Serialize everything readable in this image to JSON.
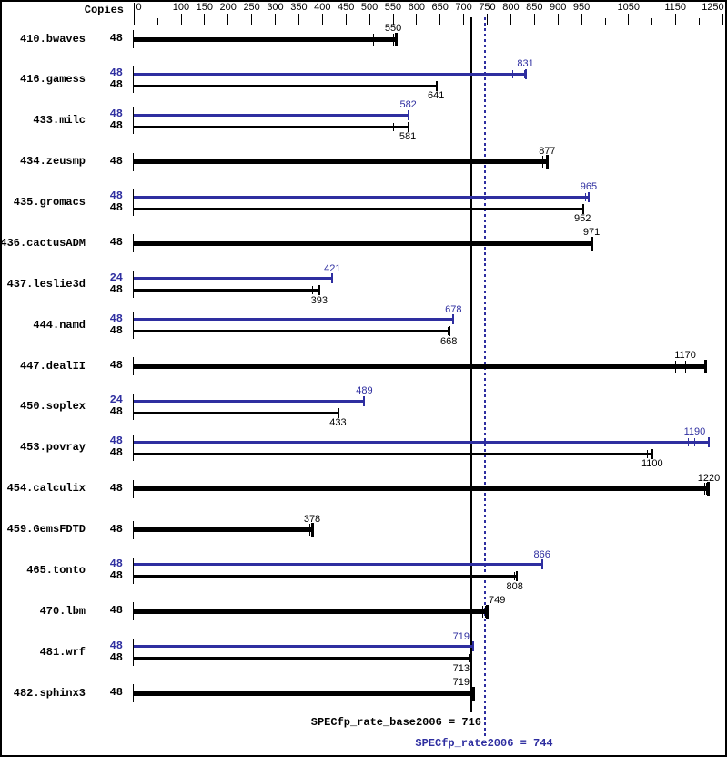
{
  "header": {
    "copies_label": "Copies"
  },
  "summary": {
    "base_label": "SPECfp_rate_base2006 = 716",
    "peak_label": "SPECfp_rate2006 = 744"
  },
  "colors": {
    "base": "#000000",
    "peak": "#2e2ea0",
    "background": "#ffffff"
  },
  "chart_data": {
    "type": "bar",
    "orientation": "horizontal",
    "xlabel": "Copies",
    "xlim": [
      0,
      1250
    ],
    "axis": {
      "major_ticks": [
        0,
        100,
        150,
        200,
        250,
        300,
        350,
        400,
        450,
        500,
        550,
        600,
        650,
        700,
        750,
        800,
        850,
        900,
        950,
        1050,
        1150,
        1250
      ],
      "minor_ticks": [
        50,
        1000,
        1100,
        1200
      ]
    },
    "reference_lines": [
      {
        "name": "SPECfp_rate_base2006",
        "value": 716,
        "style": "solid",
        "color": "#000000"
      },
      {
        "name": "SPECfp_rate2006",
        "value": 744,
        "style": "dotted",
        "color": "#2e2ea0"
      }
    ],
    "benchmarks": [
      {
        "name": "410.bwaves",
        "bars": [
          {
            "type": "base",
            "copies": 48,
            "value": 550,
            "run_marks": [
              508,
              550,
              556
            ]
          }
        ]
      },
      {
        "name": "416.gamess",
        "bars": [
          {
            "type": "peak",
            "copies": 48,
            "value": 831,
            "run_marks": [
              804,
              828,
              831
            ]
          },
          {
            "type": "base",
            "copies": 48,
            "value": 641,
            "run_marks": [
              604,
              641,
              643
            ]
          }
        ]
      },
      {
        "name": "433.milc",
        "bars": [
          {
            "type": "peak",
            "copies": 48,
            "value": 582,
            "run_marks": [
              580,
              582,
              582
            ]
          },
          {
            "type": "base",
            "copies": 48,
            "value": 581,
            "run_marks": [
              551,
              581,
              582
            ]
          }
        ]
      },
      {
        "name": "434.zeusmp",
        "bars": [
          {
            "type": "base",
            "copies": 48,
            "value": 877,
            "run_marks": [
              867,
              877,
              878
            ]
          }
        ]
      },
      {
        "name": "435.gromacs",
        "bars": [
          {
            "type": "peak",
            "copies": 48,
            "value": 965,
            "run_marks": [
              959,
              963,
              965
            ]
          },
          {
            "type": "base",
            "copies": 48,
            "value": 952,
            "run_marks": [
              948,
              952,
              953
            ]
          }
        ]
      },
      {
        "name": "436.cactusADM",
        "bars": [
          {
            "type": "base",
            "copies": 48,
            "value": 971,
            "run_marks": [
              970,
              971,
              971
            ]
          }
        ]
      },
      {
        "name": "437.leslie3d",
        "bars": [
          {
            "type": "peak",
            "copies": 24,
            "value": 421,
            "run_marks": [
              420,
              421,
              421
            ]
          },
          {
            "type": "base",
            "copies": 48,
            "value": 393,
            "run_marks": [
              379,
              393,
              394
            ]
          }
        ]
      },
      {
        "name": "444.namd",
        "bars": [
          {
            "type": "peak",
            "copies": 48,
            "value": 678,
            "run_marks": [
              677,
              678,
              678
            ]
          },
          {
            "type": "base",
            "copies": 48,
            "value": 668,
            "run_marks": [
              666,
              668,
              669
            ]
          }
        ]
      },
      {
        "name": "447.dealII",
        "bars": [
          {
            "type": "base",
            "copies": 48,
            "value": 1170,
            "run_marks": [
              1150,
              1170,
              1213
            ]
          }
        ]
      },
      {
        "name": "450.soplex",
        "bars": [
          {
            "type": "peak",
            "copies": 24,
            "value": 489,
            "run_marks": [
              488,
              489,
              489
            ]
          },
          {
            "type": "base",
            "copies": 48,
            "value": 433,
            "run_marks": [
              432,
              433,
              434
            ]
          }
        ]
      },
      {
        "name": "453.povray",
        "bars": [
          {
            "type": "peak",
            "copies": 48,
            "value": 1190,
            "run_marks": [
              1177,
              1190,
              1220
            ]
          },
          {
            "type": "base",
            "copies": 48,
            "value": 1100,
            "run_marks": [
              1089,
              1097,
              1100
            ]
          }
        ]
      },
      {
        "name": "454.calculix",
        "bars": [
          {
            "type": "base",
            "copies": 48,
            "value": 1220,
            "run_marks": [
              1211,
              1216,
              1220
            ]
          }
        ]
      },
      {
        "name": "459.GemsFDTD",
        "bars": [
          {
            "type": "base",
            "copies": 48,
            "value": 378,
            "run_marks": [
              374,
              378,
              379
            ]
          }
        ]
      },
      {
        "name": "465.tonto",
        "bars": [
          {
            "type": "peak",
            "copies": 48,
            "value": 866,
            "run_marks": [
              861,
              866,
              867
            ]
          },
          {
            "type": "base",
            "copies": 48,
            "value": 808,
            "run_marks": [
              807,
              808,
              813
            ]
          }
        ]
      },
      {
        "name": "470.lbm",
        "bars": [
          {
            "type": "base",
            "copies": 48,
            "value": 749,
            "run_marks": [
              740,
              746,
              749
            ]
          }
        ]
      },
      {
        "name": "481.wrf",
        "bars": [
          {
            "type": "peak",
            "copies": 48,
            "value": 719,
            "run_marks": [
              718,
              719,
              719
            ]
          },
          {
            "type": "base",
            "copies": 48,
            "value": 713,
            "run_marks": [
              711,
              713,
              714
            ]
          }
        ]
      },
      {
        "name": "482.sphinx3",
        "bars": [
          {
            "type": "base",
            "copies": 48,
            "value": 719,
            "run_marks": [
              717,
              719,
              720
            ]
          }
        ]
      }
    ]
  }
}
